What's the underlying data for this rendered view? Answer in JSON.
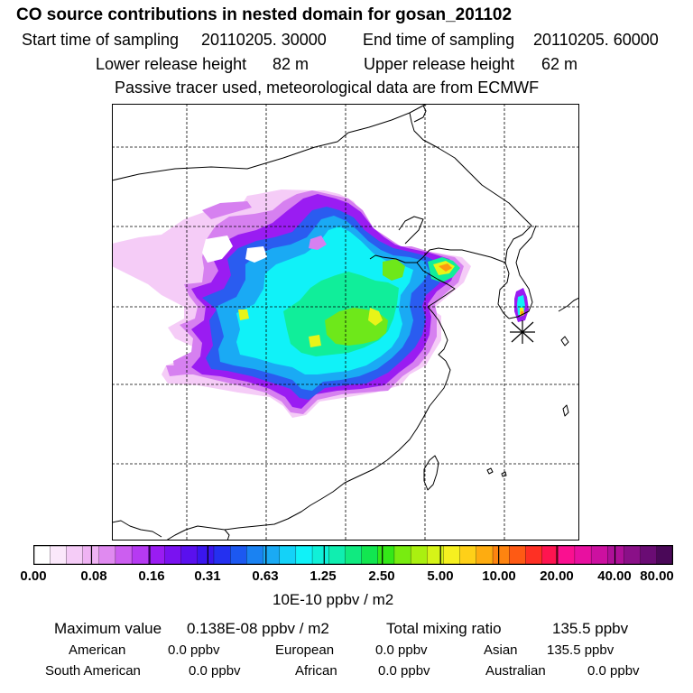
{
  "header": {
    "title": "CO  source contributions in nested domain for gosan_201102",
    "start_label": "Start time of sampling",
    "start_value": "20110205. 30000",
    "end_label": "End time of sampling",
    "end_value": "20110205. 60000",
    "lower_label": "Lower release height",
    "lower_value": "82 m",
    "upper_label": "Upper release height",
    "upper_value": "62 m",
    "note": "Passive tracer used, meteorological data are from ECMWF"
  },
  "colorbar": {
    "ticks": [
      "0.00",
      "0.08",
      "0.16",
      "0.31",
      "0.63",
      "1.25",
      "2.50",
      "5.00",
      "10.00",
      "20.00",
      "40.00",
      "80.00"
    ],
    "unit": "10E-10 ppbv / m2",
    "colors": [
      "#ffffff",
      "#fbe8fb",
      "#f5ccf7",
      "#efb3f3",
      "#e08af0",
      "#cc5ef0",
      "#b63af2",
      "#9a1cf2",
      "#7a12f0",
      "#5a10ee",
      "#3a16ee",
      "#2430f0",
      "#1c58f0",
      "#1a82f2",
      "#1aaaf4",
      "#14d2f8",
      "#10f2f8",
      "#10f0d8",
      "#10eeb0",
      "#10ea80",
      "#12e650",
      "#34e818",
      "#78ec10",
      "#aaf010",
      "#d6f418",
      "#f6f020",
      "#fed018",
      "#feac10",
      "#fe8410",
      "#fe5a14",
      "#fe3024",
      "#fe1450",
      "#fa1090",
      "#e810a0",
      "#cc10a0",
      "#ae1098",
      "#8a1088",
      "#6a0c74",
      "#4a0858"
    ]
  },
  "stats": {
    "max_label": "Maximum value",
    "max_value": "0.138E-08 ppbv / m2",
    "total_label": "Total mixing ratio",
    "total_value": "135.5 ppbv"
  },
  "sources": [
    {
      "name": "American",
      "value": "0.0 ppbv"
    },
    {
      "name": "European",
      "value": "0.0 ppbv"
    },
    {
      "name": "Asian",
      "value": "135.5 ppbv"
    },
    {
      "name": "South American",
      "value": "0.0 ppbv"
    },
    {
      "name": "African",
      "value": "0.0 ppbv"
    },
    {
      "name": "Australian",
      "value": "0.0 ppbv"
    }
  ],
  "map": {
    "receptor_marker": "asterisk",
    "plume_colors": {
      "faint": "#f5ccf7",
      "light": "#d680f0",
      "purple": "#9a1cf2",
      "blue": "#2a5cf0",
      "lightblue": "#1aaaf4",
      "cyan": "#10f2f8",
      "teal": "#10ee9a",
      "green": "#6ee81a",
      "yellow": "#e8f418",
      "orange": "#fe9a10",
      "red": "#fe3024"
    }
  }
}
